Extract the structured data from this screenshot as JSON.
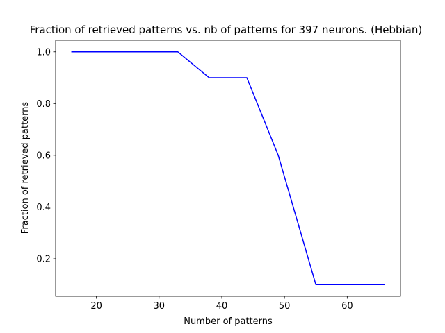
{
  "chart_data": {
    "type": "line",
    "title": "Fraction of retrieved patterns vs. nb of patterns for 397 neurons. (Hebbian)",
    "xlabel": "Number of patterns",
    "ylabel": "Fraction of retrieved patterns",
    "xlim": [
      13.5,
      68.5
    ],
    "ylim": [
      0.055,
      1.045
    ],
    "xticks": [
      20,
      30,
      40,
      50,
      60
    ],
    "yticks": [
      0.2,
      0.4,
      0.6,
      0.8,
      1.0
    ],
    "xtick_labels": [
      "20",
      "30",
      "40",
      "50",
      "60"
    ],
    "ytick_labels": [
      "0.2",
      "0.4",
      "0.6",
      "0.8",
      "1.0"
    ],
    "grid": false,
    "series": [
      {
        "color": "#0000ff",
        "x": [
          16,
          22,
          27,
          33,
          38,
          44,
          49,
          55,
          60,
          66
        ],
        "y": [
          1.0,
          1.0,
          1.0,
          1.0,
          0.9,
          0.9,
          0.6,
          0.1,
          0.1,
          0.1
        ]
      }
    ]
  }
}
